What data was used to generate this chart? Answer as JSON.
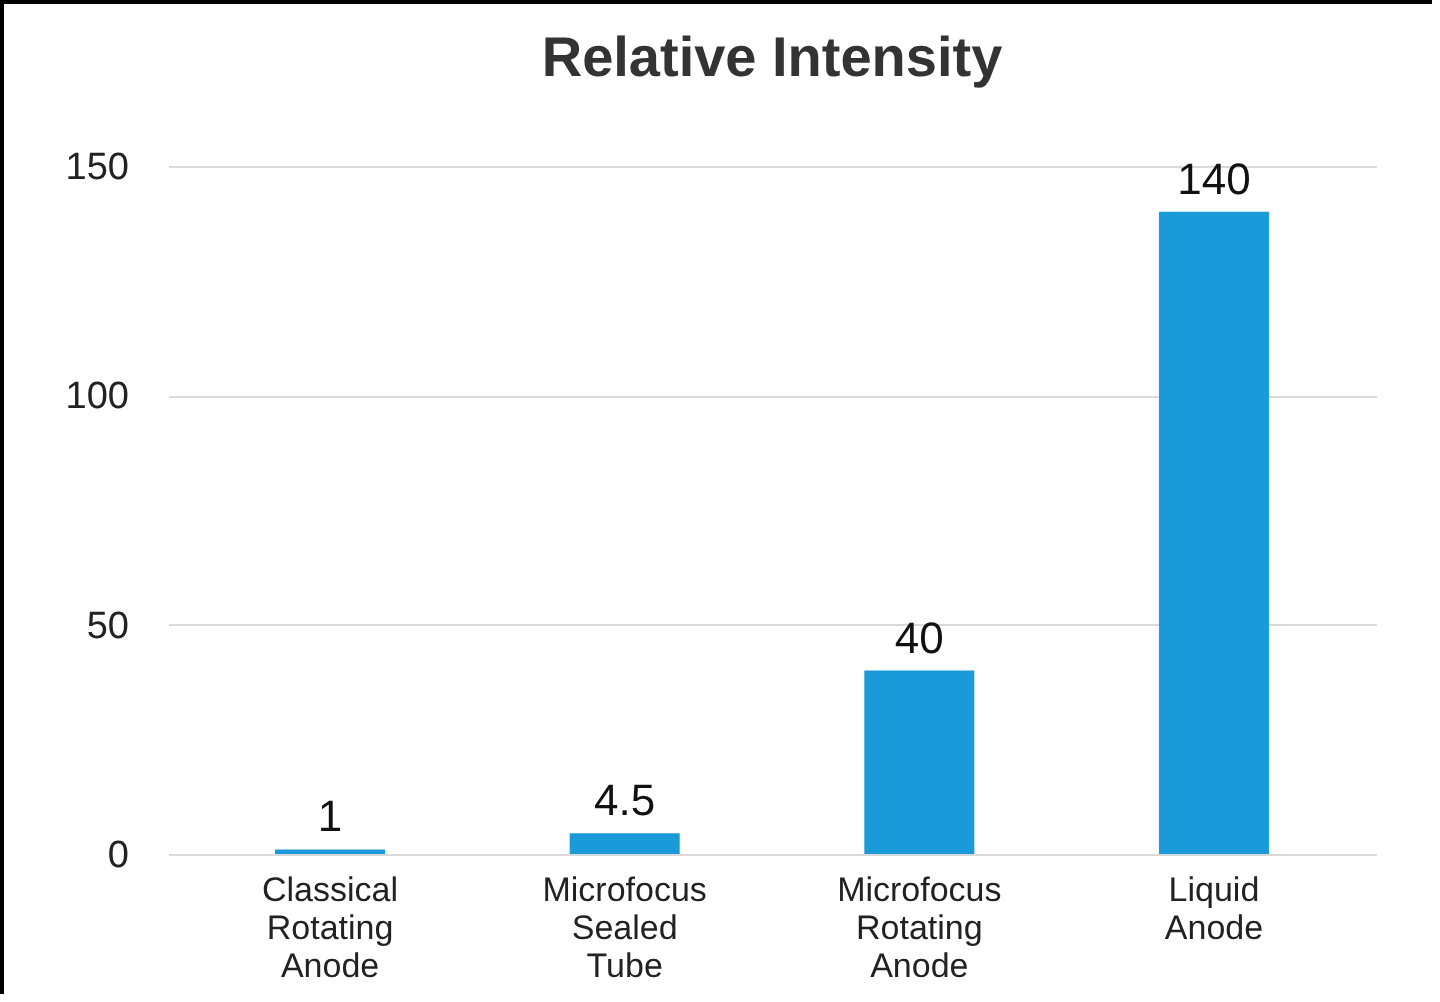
{
  "chart_data": {
    "type": "bar",
    "title": "Relative Intensity",
    "categories": [
      "Classical Rotating Anode",
      "Microfocus Sealed Tube",
      "Microfocus Rotating Anode",
      "Liquid Anode"
    ],
    "values": [
      1,
      4.5,
      40,
      140
    ],
    "color": "#1a9ad9",
    "ylim": [
      0,
      150
    ],
    "yticks": [
      0,
      50,
      100,
      150
    ],
    "grid": "y",
    "data_labels": true
  }
}
